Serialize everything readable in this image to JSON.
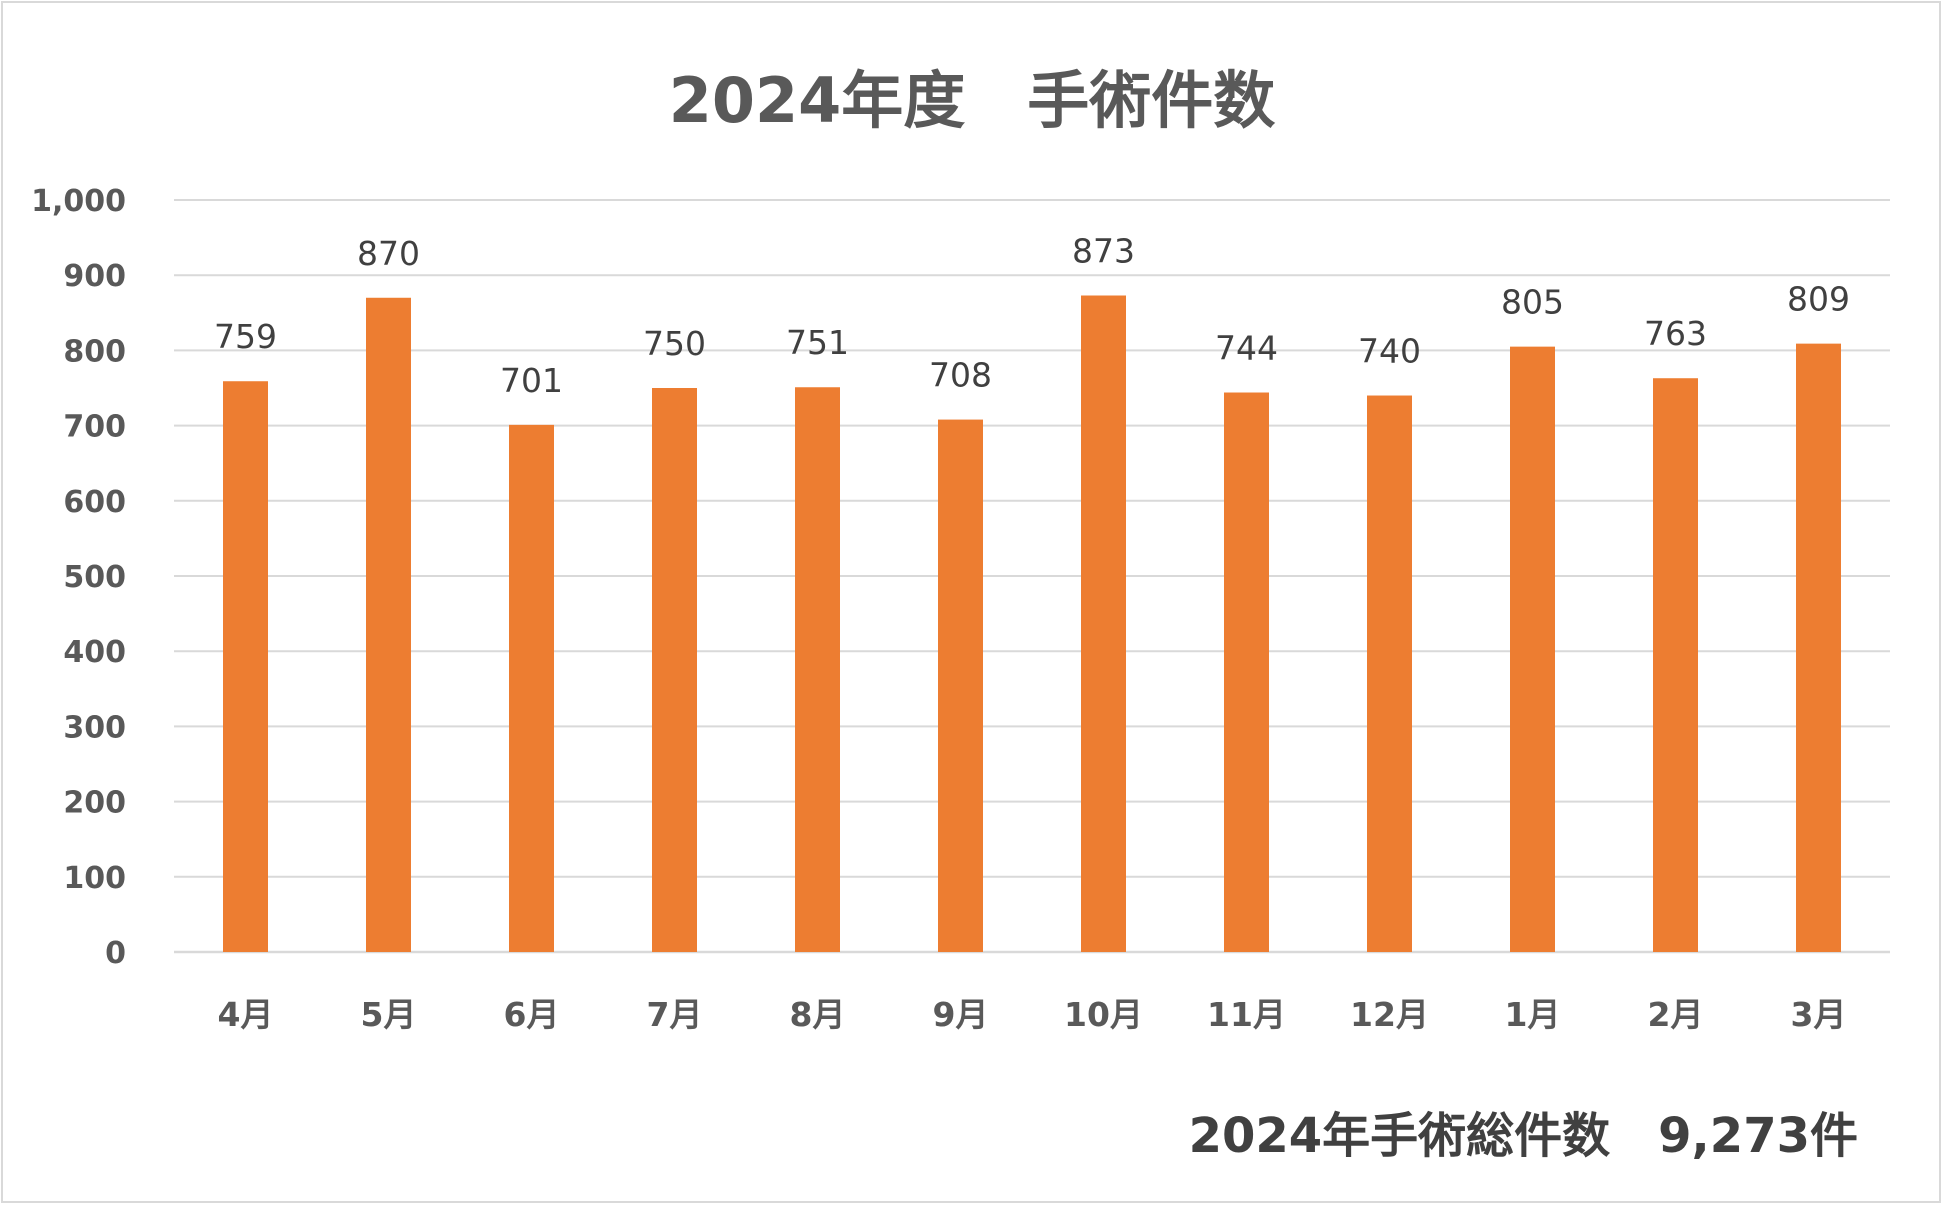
{
  "chart_data": {
    "type": "bar",
    "title": "2024年度　手術件数",
    "categories": [
      "4月",
      "5月",
      "6月",
      "7月",
      "8月",
      "9月",
      "10月",
      "11月",
      "12月",
      "1月",
      "2月",
      "3月"
    ],
    "values": [
      759,
      870,
      701,
      750,
      751,
      708,
      873,
      744,
      740,
      805,
      763,
      809
    ],
    "data_labels": [
      "759",
      "870",
      "701",
      "750",
      "751",
      "708",
      "873",
      "744",
      "740",
      "805",
      "763",
      "809"
    ],
    "ylim": [
      0,
      1000
    ],
    "yticks": [
      "0",
      "100",
      "200",
      "300",
      "400",
      "500",
      "600",
      "700",
      "800",
      "900",
      "1,000"
    ],
    "xlabel": "",
    "ylabel": "",
    "grid": true,
    "legend": "none",
    "bar_color": "#ED7D31",
    "annotation": "2024年手術総件数　9,273件"
  }
}
